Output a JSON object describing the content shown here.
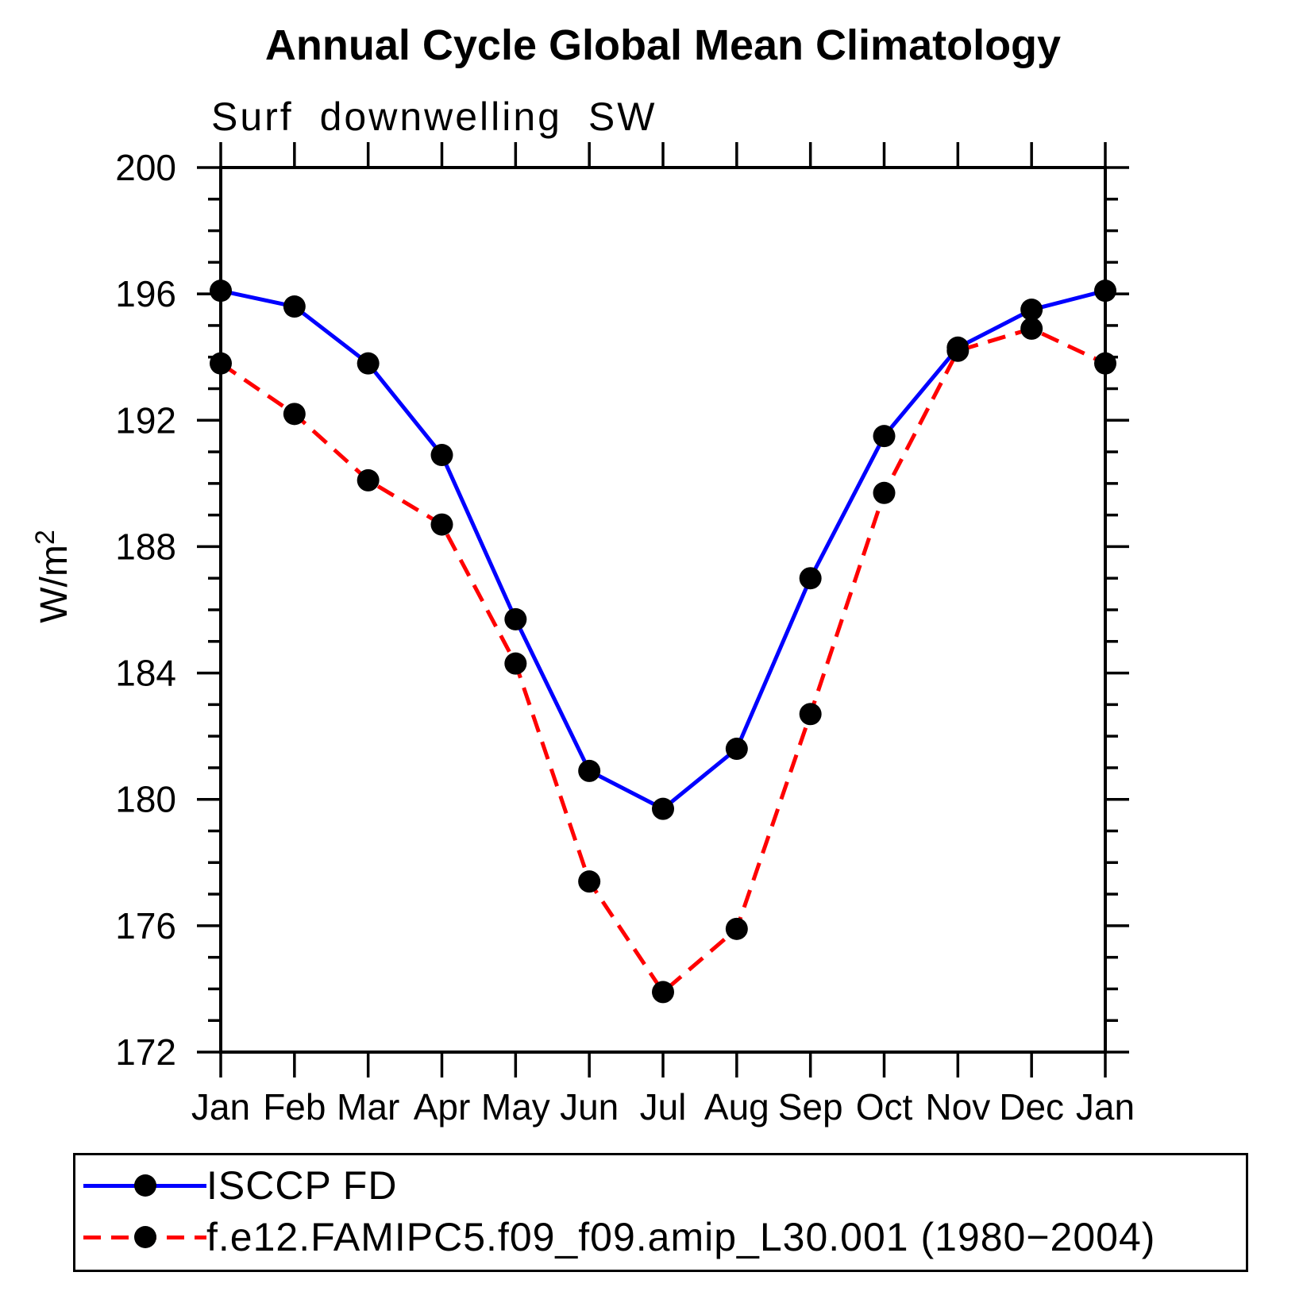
{
  "page": {
    "background_color": "#ffffff"
  },
  "chart_data": {
    "type": "line",
    "title": "Annual Cycle Global Mean Climatology",
    "subtitle": "Surf downwelling SW",
    "ylabel": {
      "text": "W/m",
      "sup": "2"
    },
    "xlabel": "",
    "categories": [
      "Jan",
      "Feb",
      "Mar",
      "Apr",
      "May",
      "Jun",
      "Jul",
      "Aug",
      "Sep",
      "Oct",
      "Nov",
      "Dec",
      "Jan"
    ],
    "ylim": [
      172,
      200
    ],
    "ytick_major_interval": 4,
    "ytick_minor_interval": 1,
    "grid": false,
    "legend_position": "bottom",
    "axis_color": "#000000",
    "marker_color": "#000000",
    "series": [
      {
        "name": "ISCCP FD",
        "color": "#0000ff",
        "line_style": "solid",
        "values": [
          196.1,
          195.6,
          193.8,
          190.9,
          185.7,
          180.9,
          179.7,
          181.6,
          187.0,
          191.5,
          194.3,
          195.5,
          196.1
        ]
      },
      {
        "name": "f.e12.FAMIPC5.f09_f09.amip_L30.001 (1980−2004)",
        "color": "#ff0000",
        "line_style": "dashed",
        "values": [
          193.8,
          192.2,
          190.1,
          188.7,
          184.3,
          177.4,
          173.9,
          175.9,
          182.7,
          189.7,
          194.2,
          194.9,
          193.8
        ]
      }
    ]
  }
}
